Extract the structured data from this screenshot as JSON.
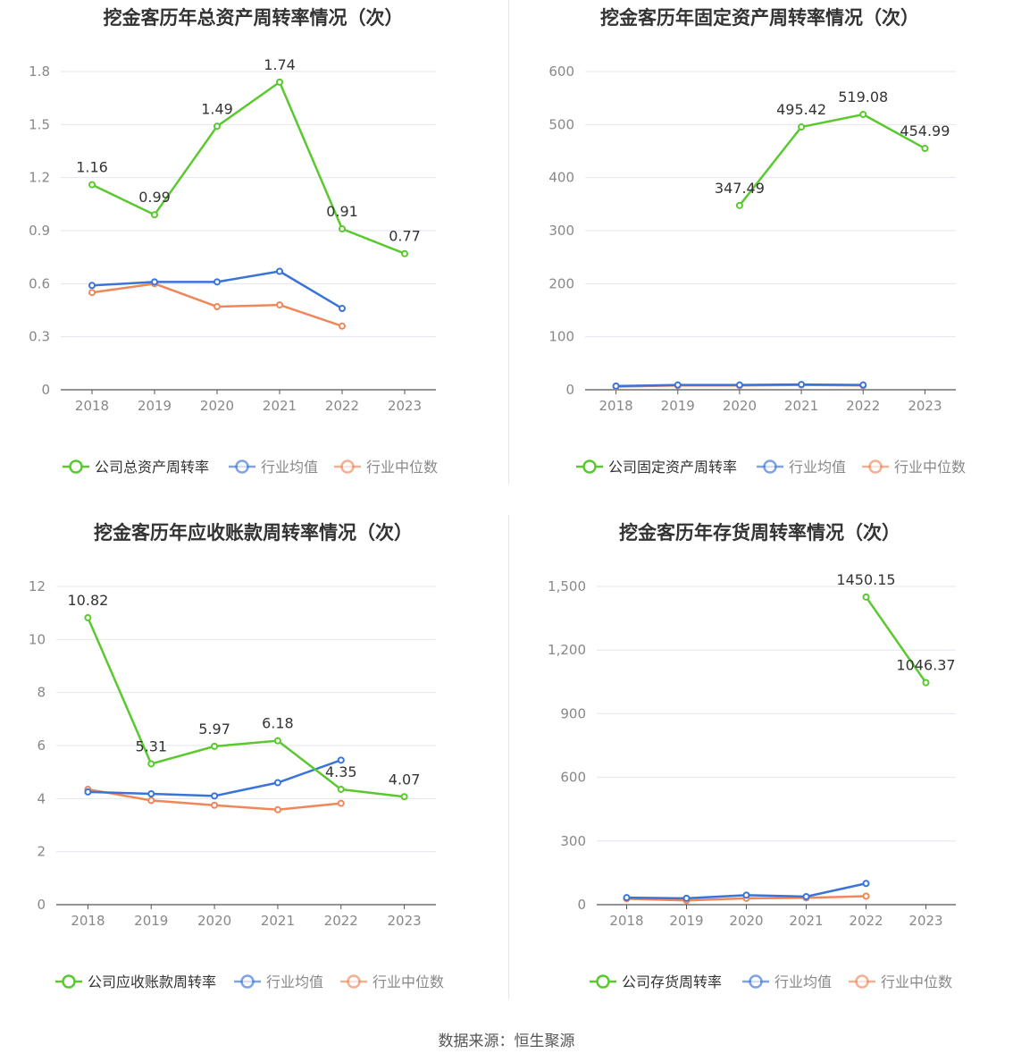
{
  "source": "数据来源：恒生聚源",
  "colors": {
    "company": "#5ac92f",
    "avg": "#3a74d9",
    "median": "#f0875a"
  },
  "chart_data": [
    {
      "type": "line",
      "title": "挖金客历年总资产周转率情况（次）",
      "categories": [
        "2018",
        "2019",
        "2020",
        "2021",
        "2022",
        "2023"
      ],
      "ylim": [
        0,
        1.8
      ],
      "yticks": [
        0,
        0.3,
        0.6,
        0.9,
        1.2,
        1.5,
        1.8
      ],
      "ytick_labels": [
        "0",
        "0.3",
        "0.6",
        "0.9",
        "1.2",
        "1.5",
        "1.8"
      ],
      "grid": true,
      "legend_position": "bottom",
      "series": [
        {
          "name": "公司总资产周转率",
          "values": [
            1.16,
            0.99,
            1.49,
            1.74,
            0.91,
            0.77
          ],
          "labels": [
            "1.16",
            "0.99",
            "1.49",
            "1.74",
            "0.91",
            "0.77"
          ]
        },
        {
          "name": "行业均值",
          "values": [
            0.59,
            0.61,
            0.61,
            0.67,
            0.46,
            null
          ]
        },
        {
          "name": "行业中位数",
          "values": [
            0.55,
            0.6,
            0.47,
            0.48,
            0.36,
            null
          ]
        }
      ]
    },
    {
      "type": "line",
      "title": "挖金客历年固定资产周转率情况（次）",
      "categories": [
        "2018",
        "2019",
        "2020",
        "2021",
        "2022",
        "2023"
      ],
      "ylim": [
        0,
        600
      ],
      "yticks": [
        0,
        100,
        200,
        300,
        400,
        500,
        600
      ],
      "ytick_labels": [
        "0",
        "100",
        "200",
        "300",
        "400",
        "500",
        "600"
      ],
      "grid": true,
      "legend_position": "bottom",
      "series": [
        {
          "name": "公司固定资产周转率",
          "values": [
            null,
            null,
            347.49,
            495.42,
            519.08,
            454.99
          ],
          "labels": [
            "",
            "",
            "347.49",
            "495.42",
            "519.08",
            "454.99"
          ]
        },
        {
          "name": "行业均值",
          "values": [
            7,
            9,
            9,
            10,
            9,
            null
          ]
        },
        {
          "name": "行业中位数",
          "values": [
            6,
            8,
            8,
            9,
            8,
            null
          ]
        }
      ]
    },
    {
      "type": "line",
      "title": "挖金客历年应收账款周转率情况（次）",
      "categories": [
        "2018",
        "2019",
        "2020",
        "2021",
        "2022",
        "2023"
      ],
      "ylim": [
        0,
        12
      ],
      "yticks": [
        0,
        2,
        4,
        6,
        8,
        10,
        12
      ],
      "ytick_labels": [
        "0",
        "2",
        "4",
        "6",
        "8",
        "10",
        "12"
      ],
      "grid": true,
      "legend_position": "bottom",
      "series": [
        {
          "name": "公司应收账款周转率",
          "values": [
            10.82,
            5.31,
            5.97,
            6.18,
            4.35,
            4.07
          ],
          "labels": [
            "10.82",
            "5.31",
            "5.97",
            "6.18",
            "4.35",
            "4.07"
          ]
        },
        {
          "name": "行业均值",
          "values": [
            4.25,
            4.18,
            4.1,
            4.6,
            5.45,
            null
          ]
        },
        {
          "name": "行业中位数",
          "values": [
            4.35,
            3.93,
            3.75,
            3.58,
            3.82,
            null
          ]
        }
      ]
    },
    {
      "type": "line",
      "title": "挖金客历年存货周转率情况（次）",
      "categories": [
        "2018",
        "2019",
        "2020",
        "2021",
        "2022",
        "2023"
      ],
      "ylim": [
        0,
        1500
      ],
      "yticks": [
        0,
        300,
        600,
        900,
        1200,
        1500
      ],
      "ytick_labels": [
        "0",
        "300",
        "600",
        "900",
        "1,200",
        "1,500"
      ],
      "grid": true,
      "legend_position": "bottom",
      "series": [
        {
          "name": "公司存货周转率",
          "values": [
            null,
            null,
            null,
            null,
            1450.15,
            1046.37
          ],
          "labels": [
            "",
            "",
            "",
            "",
            "1450.15",
            "1046.37"
          ]
        },
        {
          "name": "行业均值",
          "values": [
            33,
            30,
            45,
            38,
            100,
            null
          ]
        },
        {
          "name": "行业中位数",
          "values": [
            28,
            20,
            30,
            32,
            40,
            null
          ]
        }
      ]
    }
  ]
}
